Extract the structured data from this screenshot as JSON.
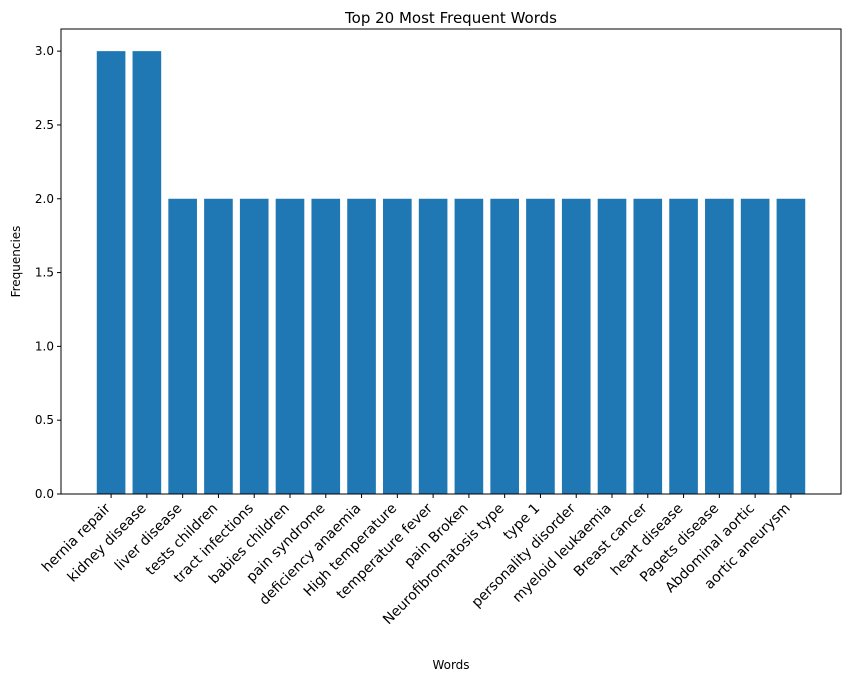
{
  "chart_data": {
    "type": "bar",
    "title": "Top 20 Most Frequent Words",
    "xlabel": "Words",
    "ylabel": "Frequencies",
    "categories": [
      "hernia repair",
      "kidney disease",
      "liver disease",
      "tests children",
      "tract infections",
      "babies children",
      "pain syndrome",
      "deficiency anaemia",
      "High temperature",
      "temperature fever",
      "pain Broken",
      "Neurofibromatosis type",
      "type 1",
      "personality disorder",
      "myeloid leukaemia",
      "Breast cancer",
      "heart disease",
      "Pagets disease",
      "Abdominal aortic",
      "aortic aneurysm"
    ],
    "values": [
      3,
      3,
      2,
      2,
      2,
      2,
      2,
      2,
      2,
      2,
      2,
      2,
      2,
      2,
      2,
      2,
      2,
      2,
      2,
      2
    ],
    "ylim": [
      0,
      3.15
    ],
    "yticks": [
      "0.0",
      "0.5",
      "1.0",
      "1.5",
      "2.0",
      "2.5",
      "3.0"
    ],
    "bar_color": "#1f77b4",
    "grid": false,
    "legend": "none"
  }
}
